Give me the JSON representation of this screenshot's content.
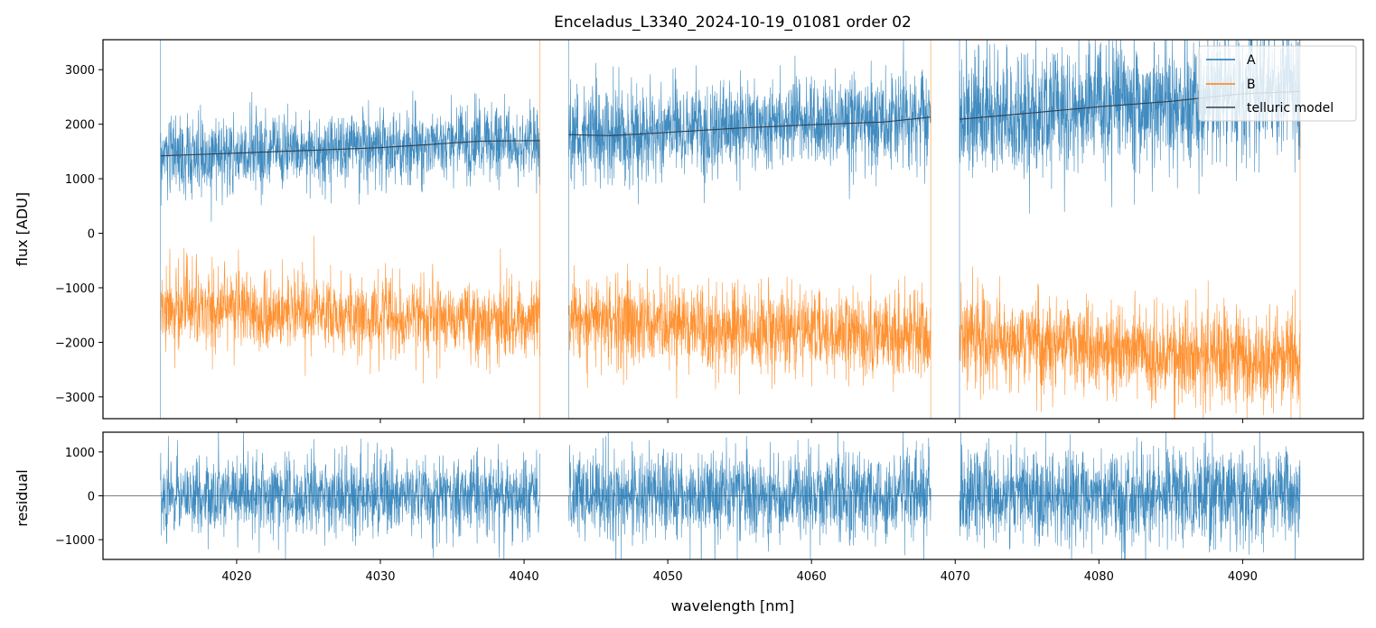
{
  "title": "Enceladus_L3340_2024-10-19_01081  order 02",
  "colors": {
    "A": "#1f77b4",
    "B": "#ff7f0e",
    "telluric": "#2f3f4f",
    "residual": "#1f77b4",
    "zero_line": "#555555"
  },
  "chart_data": [
    {
      "type": "line",
      "panel": "spectrum",
      "xlabel": "",
      "ylabel": "flux [ADU]",
      "xlim": [
        4010.7,
        4098.4
      ],
      "ylim": [
        -3400,
        3550
      ],
      "x_ticks": [
        4020,
        4030,
        4040,
        4050,
        4060,
        4070,
        4080,
        4090
      ],
      "y_ticks": [
        -3000,
        -2000,
        -1000,
        0,
        1000,
        2000,
        3000
      ],
      "y_tick_labels": [
        "−3000",
        "−2000",
        "−1000",
        "0",
        "1000",
        "2000",
        "3000"
      ],
      "legend": {
        "position": "top-right",
        "entries": [
          "A",
          "B",
          "telluric model"
        ]
      },
      "segments": [
        {
          "x_range": [
            4014.7,
            4041.1
          ],
          "A_level": [
            1420,
            1700
          ],
          "A_noise": 330,
          "B_level": [
            -1350,
            -1650
          ],
          "B_noise": 350,
          "telluric": [
            [
              4014.7,
              1420
            ],
            [
              4020,
              1470
            ],
            [
              4030,
              1570
            ],
            [
              4037,
              1690
            ],
            [
              4041.1,
              1700
            ]
          ]
        },
        {
          "x_range": [
            4043.1,
            4068.3
          ],
          "A_level": [
            1800,
            2100
          ],
          "A_noise": 420,
          "B_level": [
            -1600,
            -1900
          ],
          "B_noise": 380,
          "telluric": [
            [
              4043.1,
              1810
            ],
            [
              4046,
              1790
            ],
            [
              4050,
              1850
            ],
            [
              4055,
              1930
            ],
            [
              4060,
              1990
            ],
            [
              4065,
              2040
            ],
            [
              4068.3,
              2130
            ]
          ]
        },
        {
          "x_range": [
            4070.3,
            4094.0
          ],
          "A_level": [
            2100,
            2700
          ],
          "A_noise": 560,
          "B_level": [
            -1900,
            -2400
          ],
          "B_noise": 420,
          "telluric": [
            [
              4070.3,
              2090
            ],
            [
              4075,
              2200
            ],
            [
              4080,
              2320
            ],
            [
              4085,
              2420
            ],
            [
              4090,
              2560
            ],
            [
              4094.0,
              2600
            ]
          ]
        }
      ],
      "series": [
        {
          "name": "A"
        },
        {
          "name": "B"
        },
        {
          "name": "telluric model"
        }
      ]
    },
    {
      "type": "line",
      "panel": "residual",
      "xlabel": "wavelength [nm]",
      "ylabel": "residual",
      "xlim": [
        4010.7,
        4098.4
      ],
      "ylim": [
        -1450,
        1450
      ],
      "x_ticks": [
        4020,
        4030,
        4040,
        4050,
        4060,
        4070,
        4080,
        4090
      ],
      "y_ticks": [
        -1000,
        0,
        1000
      ],
      "y_tick_labels": [
        "−1000",
        "0",
        "1000"
      ],
      "segments": [
        {
          "x_range": [
            4014.7,
            4041.1
          ],
          "noise": 430
        },
        {
          "x_range": [
            4043.1,
            4068.3
          ],
          "noise": 480
        },
        {
          "x_range": [
            4070.3,
            4094.0
          ],
          "noise": 520
        }
      ]
    }
  ]
}
